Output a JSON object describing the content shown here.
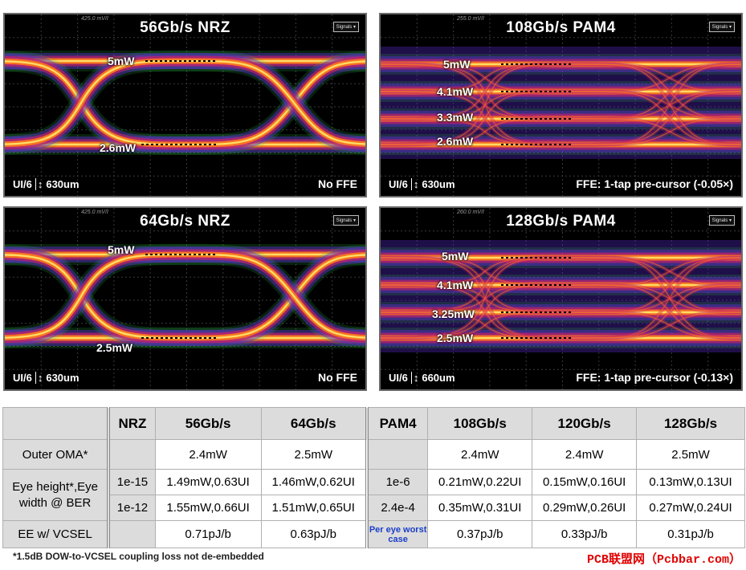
{
  "panels": [
    {
      "id": "p1",
      "title": "56Gb/s NRZ",
      "top_info": "425.0 mV/I",
      "signals": "Signals",
      "levels": [
        "5mW",
        "2.6mW"
      ],
      "ui_label": "UI/6",
      "scale": "630um",
      "ffe": "No FFE",
      "modulation": "NRZ"
    },
    {
      "id": "p2",
      "title": "108Gb/s PAM4",
      "top_info": "255.0 mV/I",
      "signals": "Signals",
      "levels": [
        "5mW",
        "4.1mW",
        "3.3mW",
        "2.6mW"
      ],
      "ui_label": "UI/6",
      "scale": "630um",
      "ffe": "FFE: 1-tap pre-cursor (-0.05×)",
      "modulation": "PAM4"
    },
    {
      "id": "p3",
      "title": "64Gb/s NRZ",
      "top_info": "425.0 mV/I",
      "signals": "Signals",
      "levels": [
        "5mW",
        "2.5mW"
      ],
      "ui_label": "UI/6",
      "scale": "630um",
      "ffe": "No FFE",
      "modulation": "NRZ"
    },
    {
      "id": "p4",
      "title": "128Gb/s PAM4",
      "top_info": "260.0 mV/I",
      "signals": "Signals",
      "levels": [
        "5mW",
        "4.1mW",
        "3.25mW",
        "2.5mW"
      ],
      "ui_label": "UI/6",
      "scale": "660um",
      "ffe": "FFE: 1-tap pre-cursor (-0.13×)",
      "modulation": "PAM4"
    }
  ],
  "table": {
    "header": {
      "nrz": "NRZ",
      "r56": "56Gb/s",
      "r64": "64Gb/s",
      "pam4": "PAM4",
      "r108": "108Gb/s",
      "r120": "120Gb/s",
      "r128": "128Gb/s"
    },
    "oma": {
      "label": "Outer OMA*",
      "v56": "2.4mW",
      "v64": "2.5mW",
      "v108": "2.4mW",
      "v120": "2.4mW",
      "v128": "2.5mW"
    },
    "eye": {
      "label": "Eye height*,Eye width @ BER",
      "row1": {
        "nrz_ber": "1e-15",
        "v56": "1.49mW,0.63UI",
        "v64": "1.46mW,0.62UI",
        "pam4_ber": "1e-6",
        "v108": "0.21mW,0.22UI",
        "v120": "0.15mW,0.16UI",
        "v128": "0.13mW,0.13UI"
      },
      "row2": {
        "nrz_ber": "1e-12",
        "v56": "1.55mW,0.66UI",
        "v64": "1.51mW,0.65UI",
        "pam4_ber": "2.4e-4",
        "v108": "0.35mW,0.31UI",
        "v120": "0.29mW,0.26UI",
        "v128": "0.27mW,0.24UI"
      }
    },
    "ee": {
      "label": "EE w/ VCSEL",
      "v56": "0.71pJ/b",
      "v64": "0.63pJ/b",
      "note": "Per eye worst case",
      "v108": "0.37pJ/b",
      "v120": "0.33pJ/b",
      "v128": "0.31pJ/b"
    }
  },
  "footnote": "*1.5dB DOW-to-VCSEL coupling loss not de-embedded",
  "watermark": "PCB联盟网（Pcbbar.com）",
  "colors": {
    "trace_core": "#ffe066",
    "trace_mid": "#ff7a1a",
    "trace_outer": "#c0206a",
    "trace_edge": "#5a2ccf",
    "noise": "#2fbf4a"
  }
}
